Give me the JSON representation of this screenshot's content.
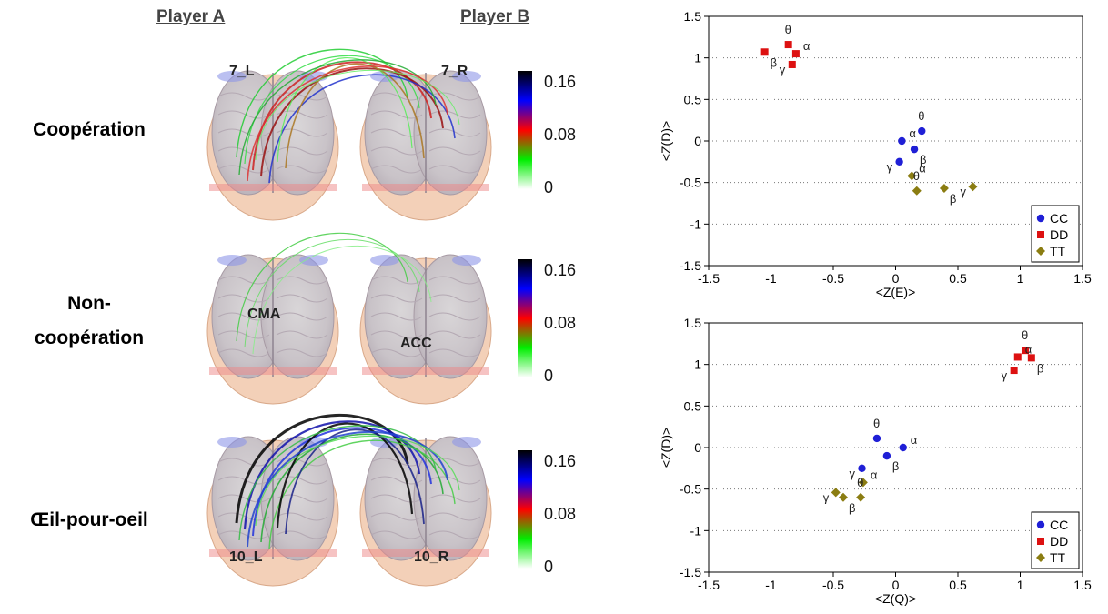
{
  "headers": {
    "player_a": "Player A",
    "player_b": "Player B"
  },
  "conditions": [
    {
      "label_lines": [
        "Coopération"
      ],
      "electrode_labels": [
        "7_L",
        "7_R"
      ]
    },
    {
      "label_lines": [
        "Non-",
        "coopération"
      ],
      "electrode_labels": [
        "CMA",
        "ACC"
      ]
    },
    {
      "label_lines": [
        "Œil-pour-oeil"
      ],
      "electrode_labels": [
        "10_L",
        "10_R"
      ]
    }
  ],
  "colorbar": {
    "ticks": [
      "0.16",
      "0.08",
      "0"
    ],
    "stops": [
      "#000000",
      "#0000ff",
      "#ff0000",
      "#00ee00",
      "#ffffff"
    ]
  },
  "chart_data": [
    {
      "type": "scatter",
      "xlabel": "<Z(E)>",
      "ylabel": "<Z(D)>",
      "xlim": [
        -1.5,
        1.5
      ],
      "ylim": [
        -1.5,
        1.5
      ],
      "xticks": [
        "-1.5",
        "-1",
        "-0.5",
        "0",
        "0.5",
        "1",
        "1.5"
      ],
      "yticks": [
        "1.5",
        "1",
        "0.5",
        "0",
        "-0.5",
        "-1",
        "-1.5"
      ],
      "grid": "horizontal-dotted",
      "legend_position": "bottom-right",
      "series": [
        {
          "name": "CC",
          "color": "#1f1fd6",
          "marker": "circle",
          "points": [
            {
              "x": 0.05,
              "y": 0.0,
              "label": "α"
            },
            {
              "x": 0.21,
              "y": 0.12,
              "label": "θ"
            },
            {
              "x": 0.15,
              "y": -0.1,
              "label": "β"
            },
            {
              "x": 0.03,
              "y": -0.25,
              "label": "γ"
            }
          ]
        },
        {
          "name": "DD",
          "color": "#dd1111",
          "marker": "square",
          "points": [
            {
              "x": -0.86,
              "y": 1.16,
              "label": "θ"
            },
            {
              "x": -0.8,
              "y": 1.05,
              "label": "α"
            },
            {
              "x": -1.05,
              "y": 1.07,
              "label": "β"
            },
            {
              "x": -0.83,
              "y": 0.92,
              "label": "γ"
            }
          ]
        },
        {
          "name": "TT",
          "color": "#8b7d12",
          "marker": "diamond",
          "points": [
            {
              "x": 0.13,
              "y": -0.42,
              "label": "α"
            },
            {
              "x": 0.17,
              "y": -0.6,
              "label": "θ"
            },
            {
              "x": 0.39,
              "y": -0.57,
              "label": "β"
            },
            {
              "x": 0.62,
              "y": -0.55,
              "label": "γ"
            }
          ]
        }
      ]
    },
    {
      "type": "scatter",
      "xlabel": "<Z(Q)>",
      "ylabel": "<Z(D)>",
      "xlim": [
        -1.5,
        1.5
      ],
      "ylim": [
        -1.5,
        1.5
      ],
      "xticks": [
        "-1.5",
        "-1",
        "-0.5",
        "0",
        "0.5",
        "1",
        "1.5"
      ],
      "yticks": [
        "1.5",
        "1",
        "0.5",
        "0",
        "-0.5",
        "-1",
        "-1.5"
      ],
      "grid": "horizontal-dotted",
      "legend_position": "bottom-right",
      "series": [
        {
          "name": "CC",
          "color": "#1f1fd6",
          "marker": "circle",
          "points": [
            {
              "x": -0.15,
              "y": 0.11,
              "label": "θ"
            },
            {
              "x": 0.06,
              "y": 0.0,
              "label": "α"
            },
            {
              "x": -0.07,
              "y": -0.1,
              "label": "β"
            },
            {
              "x": -0.27,
              "y": -0.25,
              "label": "γ"
            }
          ]
        },
        {
          "name": "DD",
          "color": "#dd1111",
          "marker": "square",
          "points": [
            {
              "x": 1.04,
              "y": 1.17,
              "label": "θ"
            },
            {
              "x": 0.98,
              "y": 1.09,
              "label": "α"
            },
            {
              "x": 1.09,
              "y": 1.08,
              "label": "β"
            },
            {
              "x": 0.95,
              "y": 0.93,
              "label": "γ"
            }
          ]
        },
        {
          "name": "TT",
          "color": "#8b7d12",
          "marker": "diamond",
          "points": [
            {
              "x": -0.26,
              "y": -0.42,
              "label": "α"
            },
            {
              "x": -0.28,
              "y": -0.6,
              "label": "θ"
            },
            {
              "x": -0.48,
              "y": -0.54,
              "label": "γ"
            },
            {
              "x": -0.42,
              "y": -0.6,
              "label": "β"
            }
          ]
        }
      ]
    }
  ]
}
